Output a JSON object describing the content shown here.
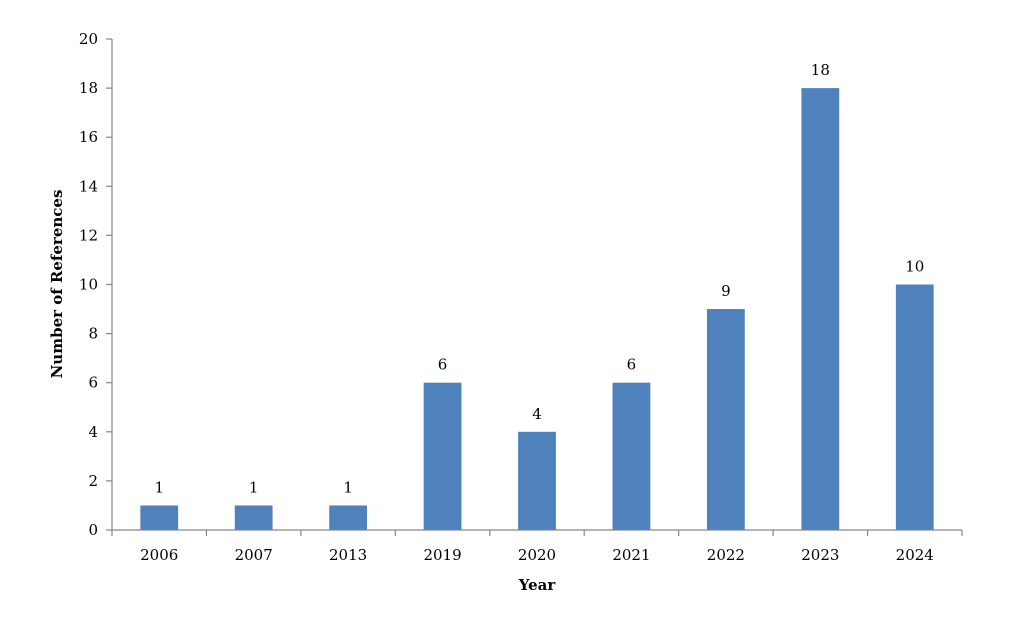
{
  "chart_data": {
    "type": "bar",
    "categories": [
      "2006",
      "2007",
      "2013",
      "2019",
      "2020",
      "2021",
      "2022",
      "2023",
      "2024"
    ],
    "values": [
      1,
      1,
      1,
      6,
      4,
      6,
      9,
      18,
      10
    ],
    "xlabel": "Year",
    "ylabel": "Number of References",
    "ylim": [
      0,
      20
    ],
    "yticks": [
      0,
      2,
      4,
      6,
      8,
      10,
      12,
      14,
      16,
      18,
      20
    ],
    "data_labels": true,
    "grid": false,
    "legend": "none",
    "bar_color": "#4F81BD"
  }
}
